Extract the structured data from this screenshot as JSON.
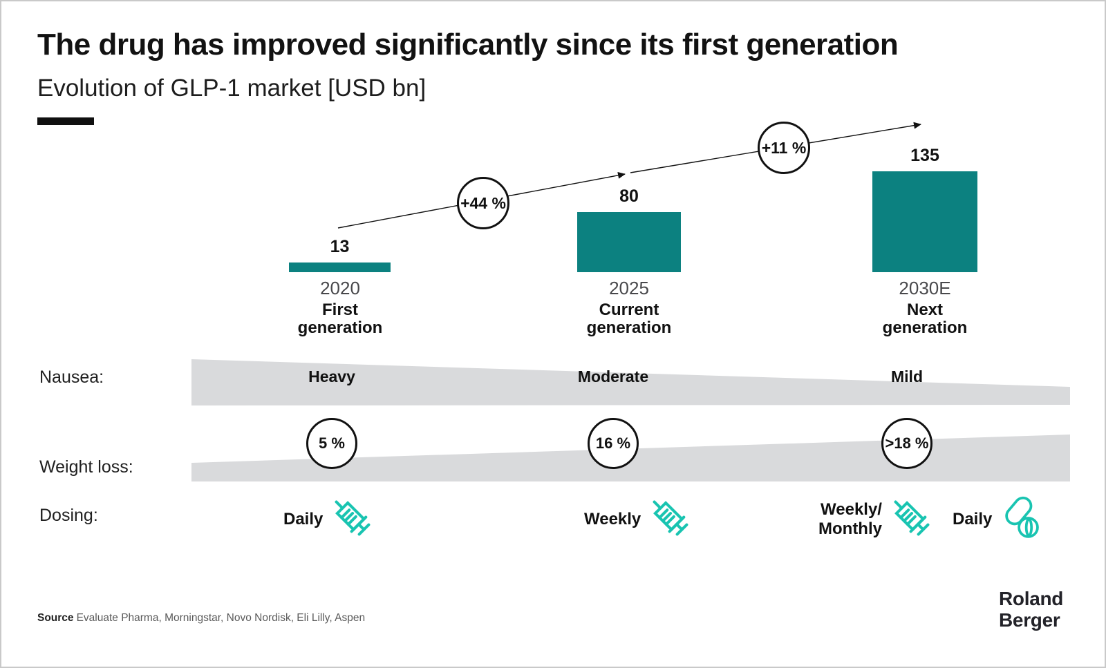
{
  "header": {
    "title": "The drug has improved significantly since its first generation",
    "subtitle": "Evolution of GLP-1 market [USD bn]"
  },
  "chart_data": {
    "type": "bar",
    "title": "Evolution of GLP-1 market [USD bn]",
    "ylabel": "USD bn",
    "ylim": [
      0,
      150
    ],
    "grid": false,
    "categories": [
      "2020",
      "2025",
      "2030E"
    ],
    "series": [
      {
        "name": "GLP-1 market size [USD bn]",
        "values": [
          13,
          80,
          135
        ]
      }
    ],
    "bar_color": "#0c8180",
    "bars": [
      {
        "value": "13",
        "year": "2020",
        "gen_line1": "First",
        "gen_line2": "generation"
      },
      {
        "value": "80",
        "year": "2025",
        "gen_line1": "Current",
        "gen_line2": "generation"
      },
      {
        "value": "135",
        "year": "2030E",
        "gen_line1": "Next",
        "gen_line2": "generation"
      }
    ],
    "growth_labels": [
      "+44 %",
      "+11 %"
    ]
  },
  "rows": {
    "nausea": {
      "label": "Nausea:",
      "values": [
        "Heavy",
        "Moderate",
        "Mild"
      ]
    },
    "weight_loss": {
      "label": "Weight loss:",
      "values": [
        "5 %",
        "16 %",
        ">18 %"
      ]
    },
    "dosing": {
      "label": "Dosing:",
      "items": [
        {
          "text": "Daily",
          "icon": "syringe-icon"
        },
        {
          "text": "Weekly",
          "icon": "syringe-icon"
        },
        {
          "text_line1": "Weekly/",
          "text_line2": "Monthly",
          "icon": "syringe-icon"
        },
        {
          "text": "Daily",
          "icon": "pills-icon"
        }
      ]
    }
  },
  "footer": {
    "source_label": "Source",
    "source_text": "Evaluate Pharma, Morningstar, Novo Nordisk, Eli Lilly, Aspen",
    "logo_line1": "Roland",
    "logo_line2": "Berger"
  },
  "colors": {
    "bar_teal": "#0c8180",
    "icon_teal": "#19c4b1",
    "band_gray": "#d9dadc",
    "ink": "#111111"
  }
}
